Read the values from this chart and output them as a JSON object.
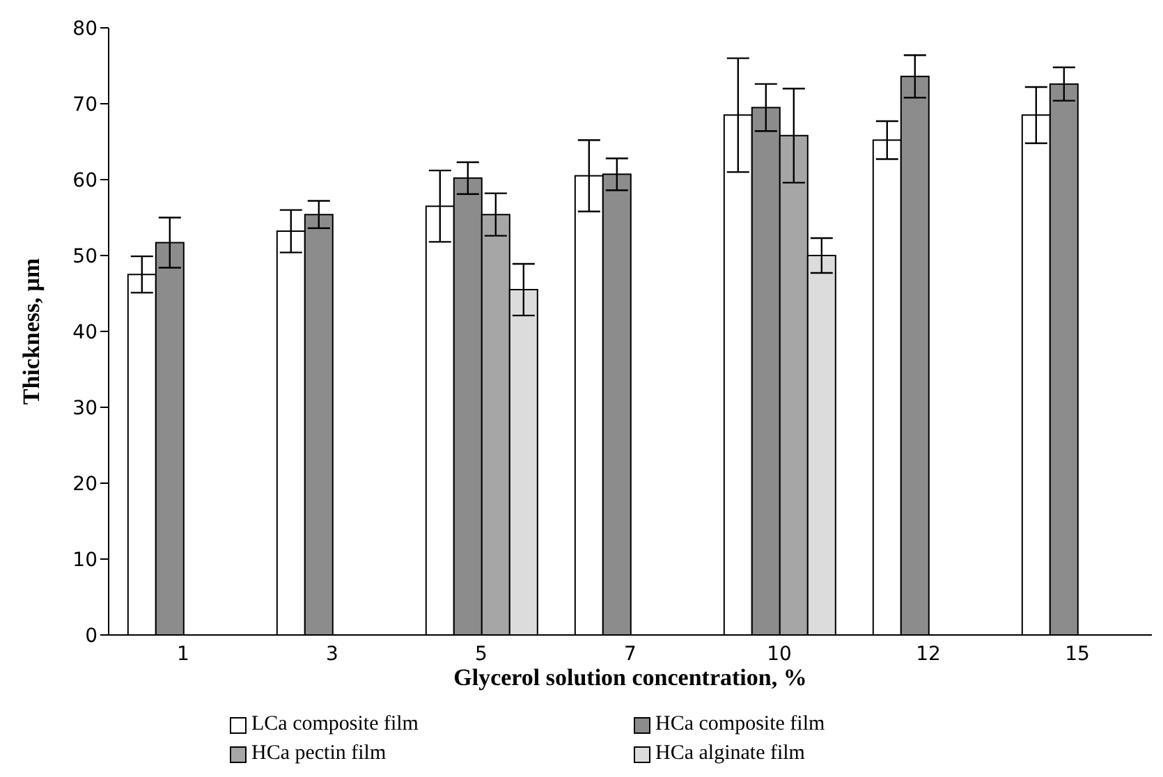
{
  "chart_data": {
    "type": "bar",
    "xlabel": "Glycerol solution concentration, %",
    "ylabel": "Thickness, µm",
    "categories": [
      "1",
      "3",
      "5",
      "7",
      "10",
      "12",
      "15"
    ],
    "series": [
      {
        "name": "LCa composite film",
        "color": "#ffffff",
        "values": [
          47.5,
          53.2,
          56.5,
          60.5,
          68.5,
          65.2,
          68.5
        ],
        "errors": [
          2.4,
          2.8,
          4.7,
          4.7,
          7.5,
          2.5,
          3.7
        ]
      },
      {
        "name": "HCa composite film",
        "color": "#8c8c8c",
        "values": [
          51.7,
          55.4,
          60.2,
          60.7,
          69.5,
          73.6,
          72.6
        ],
        "errors": [
          3.3,
          1.8,
          2.1,
          2.1,
          3.1,
          2.8,
          2.2
        ]
      },
      {
        "name": "HCa pectin film",
        "color": "#a6a6a6",
        "values": [
          null,
          null,
          55.4,
          null,
          65.8,
          null,
          null
        ],
        "errors": [
          null,
          null,
          2.8,
          null,
          6.2,
          null,
          null
        ]
      },
      {
        "name": "HCa alginate film",
        "color": "#dcdcdc",
        "values": [
          null,
          null,
          45.5,
          null,
          50.0,
          null,
          null
        ],
        "errors": [
          null,
          null,
          3.4,
          null,
          2.3,
          null,
          null
        ]
      }
    ],
    "ylim": [
      0,
      80
    ],
    "yticks": [
      0,
      10,
      20,
      30,
      40,
      50,
      60,
      70,
      80
    ],
    "grid": false,
    "legend": "bottom"
  }
}
